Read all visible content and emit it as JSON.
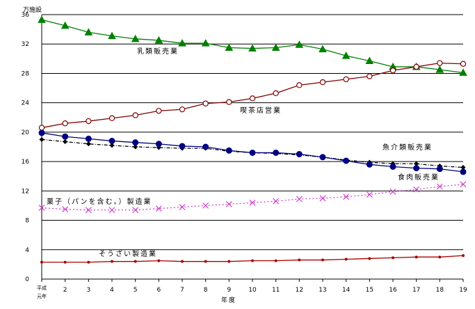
{
  "chart_data": {
    "type": "line",
    "title": "",
    "ylabel": "万施設",
    "xlabel": "年度",
    "ylim": [
      0,
      36
    ],
    "yticks": [
      0,
      4,
      8,
      12,
      16,
      20,
      24,
      28,
      32,
      36
    ],
    "grid": true,
    "categories": [
      "平成\n元年",
      "2",
      "3",
      "4",
      "5",
      "6",
      "7",
      "8",
      "9",
      "10",
      "11",
      "12",
      "13",
      "14",
      "15",
      "16",
      "17",
      "18",
      "19"
    ],
    "first_category_lines": [
      "平成",
      "元年"
    ],
    "series": [
      {
        "name": "乳類販売業",
        "color": "#008000",
        "marker": "triangle",
        "line": "solid",
        "values": [
          35.3,
          34.5,
          33.6,
          33.1,
          32.7,
          32.5,
          32.1,
          32.1,
          31.5,
          31.4,
          31.5,
          31.9,
          31.3,
          30.4,
          29.7,
          28.9,
          28.9,
          28.5,
          28.1
        ]
      },
      {
        "name": "喫茶店営業",
        "color": "#800000",
        "marker": "circle-open",
        "line": "solid",
        "values": [
          20.6,
          21.2,
          21.5,
          21.9,
          22.3,
          22.9,
          23.1,
          23.9,
          24.1,
          24.6,
          25.3,
          26.4,
          26.8,
          27.2,
          27.6,
          28.4,
          28.9,
          29.4,
          29.3
        ]
      },
      {
        "name": "魚介類販売業",
        "color": "#000000",
        "marker": "diamond",
        "line": "dashdot",
        "values": [
          19.0,
          18.7,
          18.4,
          18.2,
          18.0,
          17.9,
          17.8,
          17.8,
          17.4,
          17.2,
          17.1,
          16.9,
          16.6,
          16.2,
          15.9,
          15.7,
          15.7,
          15.4,
          15.2
        ]
      },
      {
        "name": "食肉販売業",
        "color": "#000080",
        "marker": "circle",
        "line": "solid",
        "values": [
          19.9,
          19.4,
          19.1,
          18.8,
          18.6,
          18.4,
          18.1,
          18.0,
          17.5,
          17.2,
          17.2,
          17.0,
          16.6,
          16.1,
          15.6,
          15.3,
          15.1,
          15.0,
          14.6
        ]
      },
      {
        "name": "菓子（パンを含む。）製造業",
        "color": "#cc44cc",
        "marker": "x",
        "line": "dotted",
        "values": [
          9.7,
          9.5,
          9.4,
          9.4,
          9.4,
          9.6,
          9.8,
          10.0,
          10.2,
          10.4,
          10.6,
          10.9,
          11.0,
          11.2,
          11.5,
          11.9,
          12.2,
          12.6,
          12.9
        ]
      },
      {
        "name": "そうざい製造業",
        "color": "#aa0000",
        "marker": "dot-small",
        "line": "solid",
        "values": [
          2.3,
          2.3,
          2.3,
          2.4,
          2.4,
          2.5,
          2.4,
          2.4,
          2.4,
          2.5,
          2.5,
          2.6,
          2.6,
          2.7,
          2.8,
          2.9,
          3.0,
          3.0,
          3.2
        ]
      }
    ]
  }
}
